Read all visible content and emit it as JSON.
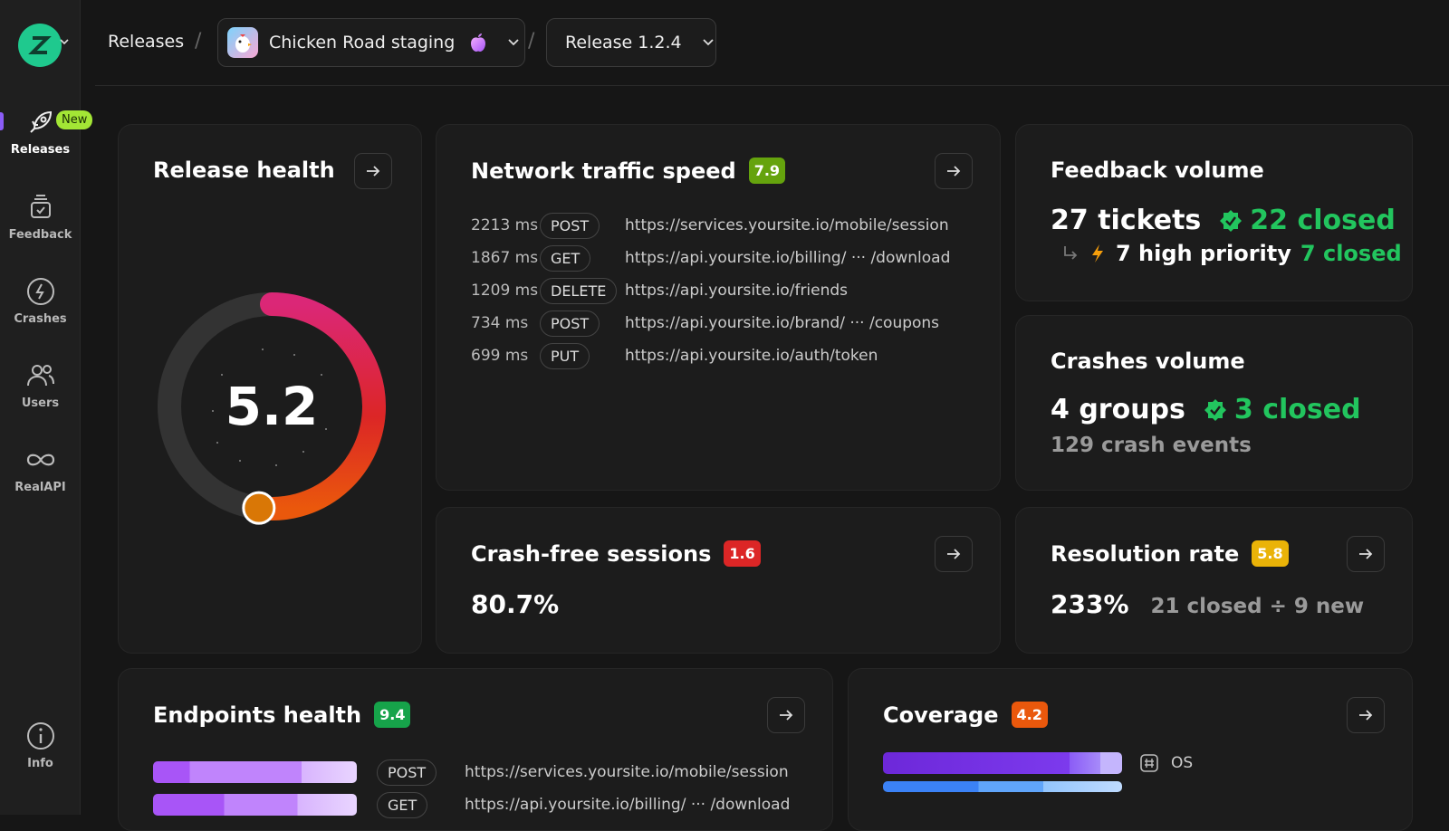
{
  "sidebar": {
    "items": [
      {
        "label": "Releases",
        "icon": "rocket-icon",
        "badge": "New"
      },
      {
        "label": "Feedback",
        "icon": "feedback-icon"
      },
      {
        "label": "Crashes",
        "icon": "crash-icon"
      },
      {
        "label": "Users",
        "icon": "users-icon"
      },
      {
        "label": "RealAPI",
        "icon": "infinity-icon"
      },
      {
        "label": "Info",
        "icon": "info-icon"
      }
    ]
  },
  "breadcrumb": {
    "root": "Releases",
    "app": "Chicken Road staging",
    "release": "Release 1.2.4"
  },
  "release_health": {
    "title": "Release health",
    "value": "5.2",
    "fraction": 0.52
  },
  "network": {
    "title": "Network traffic speed",
    "score": "7.9",
    "rows": [
      {
        "ms": "2213 ms",
        "method": "POST",
        "url": "https://services.yoursite.io/mobile/session"
      },
      {
        "ms": "1867 ms",
        "method": "GET",
        "url": "https://api.yoursite.io/billing/ ··· /download"
      },
      {
        "ms": "1209 ms",
        "method": "DELETE",
        "url": "https://api.yoursite.io/friends"
      },
      {
        "ms": "734 ms",
        "method": "POST",
        "url": "https://api.yoursite.io/brand/ ··· /coupons"
      },
      {
        "ms": "699 ms",
        "method": "PUT",
        "url": "https://api.yoursite.io/auth/token"
      }
    ]
  },
  "feedback": {
    "title": "Feedback volume",
    "tickets": "27 tickets",
    "closed": "22 closed",
    "high_priority": "7 high priority",
    "high_priority_closed": "7 closed"
  },
  "crashes": {
    "title": "Crashes volume",
    "groups": "4 groups",
    "closed": "3 closed",
    "events": "129 crash events"
  },
  "crash_free": {
    "title": "Crash-free sessions",
    "score": "1.6",
    "value": "80.7%"
  },
  "resolution": {
    "title": "Resolution rate",
    "score": "5.8",
    "value": "233%",
    "detail": "21 closed ÷ 9 new"
  },
  "endpoints": {
    "title": "Endpoints health",
    "score": "9.4",
    "rows": [
      {
        "method": "POST",
        "url": "https://services.yoursite.io/mobile/session"
      },
      {
        "method": "GET",
        "url": "https://api.yoursite.io/billing/ ··· /download"
      }
    ]
  },
  "coverage": {
    "title": "Coverage",
    "score": "4.2",
    "legend": "OS"
  },
  "colors": {
    "green": "#22c55e",
    "accent": "#8b5cf6",
    "score_green": "#65a30d",
    "score_red": "#dc2626",
    "score_yellow": "#eab308",
    "score_orange": "#ea580c"
  }
}
